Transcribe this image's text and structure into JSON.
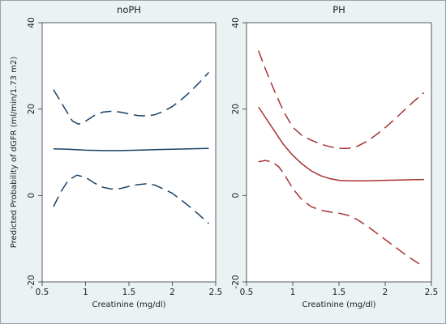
{
  "chart_data": {
    "type": "line",
    "ylabel": "Predicted Probability of dGFR (ml/min/1.73 m2)",
    "xlabel": "Creatinine (mg/dl)",
    "xlim": [
      0.5,
      2.5
    ],
    "ylim": [
      -20,
      40
    ],
    "xticks": [
      "0.5",
      "1",
      "1.5",
      "2",
      "2.5"
    ],
    "yticks": [
      "-20",
      "0",
      "20",
      "40"
    ],
    "grid": false,
    "panels": [
      {
        "title": "noPH",
        "color": "#1a4166",
        "series": [
          {
            "role": "upper",
            "x": [
              0.63,
              0.75,
              0.85,
              0.92,
              1.0,
              1.1,
              1.2,
              1.3,
              1.4,
              1.5,
              1.6,
              1.7,
              1.8,
              1.9,
              2.0,
              2.1,
              2.2,
              2.3,
              2.42
            ],
            "y": [
              24.5,
              20.5,
              17.2,
              16.5,
              17.2,
              18.5,
              19.3,
              19.5,
              19.3,
              18.9,
              18.5,
              18.4,
              18.7,
              19.5,
              20.6,
              22.1,
              23.9,
              25.9,
              28.5
            ]
          },
          {
            "role": "fit",
            "x": [
              0.63,
              0.8,
              1.0,
              1.2,
              1.4,
              1.6,
              1.8,
              2.0,
              2.2,
              2.42
            ],
            "y": [
              10.8,
              10.7,
              10.5,
              10.4,
              10.4,
              10.5,
              10.6,
              10.7,
              10.8,
              10.9
            ]
          },
          {
            "role": "lower",
            "x": [
              0.63,
              0.72,
              0.8,
              0.9,
              1.0,
              1.1,
              1.2,
              1.3,
              1.4,
              1.5,
              1.6,
              1.7,
              1.8,
              1.9,
              2.0,
              2.1,
              2.2,
              2.3,
              2.42
            ],
            "y": [
              -2.6,
              1.0,
              3.5,
              4.7,
              4.2,
              2.9,
              1.9,
              1.5,
              1.6,
              2.1,
              2.5,
              2.7,
              2.4,
              1.5,
              0.5,
              -1.0,
              -2.6,
              -4.3,
              -6.5
            ]
          }
        ]
      },
      {
        "title": "PH",
        "color": "#a83232",
        "series": [
          {
            "role": "upper",
            "x": [
              0.63,
              0.7,
              0.8,
              0.9,
              1.0,
              1.1,
              1.2,
              1.3,
              1.4,
              1.5,
              1.6,
              1.7,
              1.8,
              1.9,
              2.0,
              2.1,
              2.2,
              2.3,
              2.42
            ],
            "y": [
              33.5,
              29.5,
              24.3,
              19.5,
              15.8,
              13.9,
              12.8,
              11.9,
              11.3,
              10.9,
              10.9,
              11.4,
              12.5,
              14.0,
              15.7,
              17.6,
              19.6,
              21.6,
              23.8
            ]
          },
          {
            "role": "fit",
            "x": [
              0.63,
              0.7,
              0.8,
              0.9,
              1.0,
              1.1,
              1.2,
              1.3,
              1.4,
              1.5,
              1.6,
              1.7,
              1.8,
              2.0,
              2.2,
              2.42
            ],
            "y": [
              20.5,
              18.2,
              15.0,
              11.8,
              9.3,
              7.3,
              5.7,
              4.6,
              3.9,
              3.5,
              3.4,
              3.4,
              3.4,
              3.5,
              3.6,
              3.7
            ]
          },
          {
            "role": "lower",
            "x": [
              0.63,
              0.7,
              0.78,
              0.85,
              0.9,
              1.0,
              1.1,
              1.2,
              1.3,
              1.4,
              1.5,
              1.6,
              1.7,
              1.8,
              1.9,
              2.0,
              2.1,
              2.2,
              2.3,
              2.42
            ],
            "y": [
              7.8,
              8.1,
              7.8,
              6.6,
              5.2,
              1.6,
              -1.0,
              -2.6,
              -3.4,
              -3.8,
              -4.1,
              -4.6,
              -5.6,
              -7.0,
              -8.6,
              -10.2,
              -11.8,
              -13.4,
              -14.9,
              -16.5
            ]
          }
        ]
      }
    ]
  }
}
